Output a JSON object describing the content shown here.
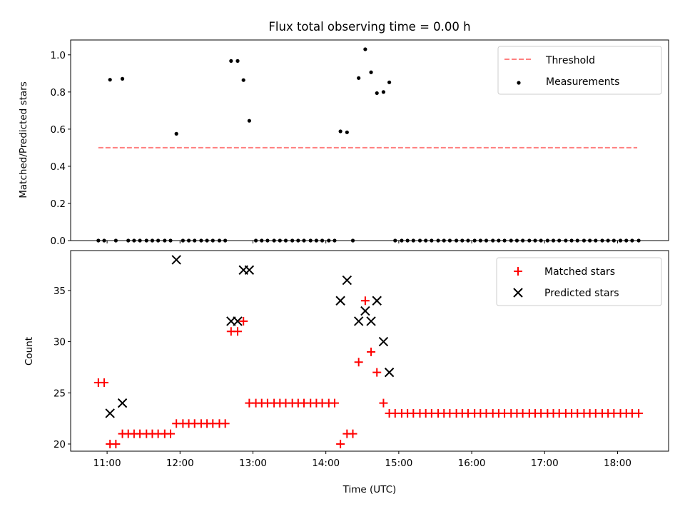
{
  "chart_data": [
    {
      "type": "scatter",
      "title": "Flux total observing time = 0.00 h",
      "xlabel": "",
      "ylabel": "Matched/Predicted stars",
      "ylim": [
        0,
        1.08
      ],
      "yticks": [
        0.0,
        0.2,
        0.4,
        0.6,
        0.8,
        1.0
      ],
      "ytick_labels": [
        "0.0",
        "0.2",
        "0.4",
        "0.6",
        "0.8",
        "1.0"
      ],
      "xlim": [
        10.5,
        18.7
      ],
      "x_unit": "hours UTC",
      "legend_position": "top-right",
      "threshold": {
        "name": "Threshold",
        "value": 0.5,
        "x_range": [
          10.88,
          18.27
        ],
        "color": "#ff7f7f"
      },
      "series": [
        {
          "name": "Measurements",
          "color": "#000000",
          "points": [
            [
              10.88,
              0
            ],
            [
              10.96,
              0
            ],
            [
              11.04,
              0.866
            ],
            [
              11.12,
              0
            ],
            [
              11.21,
              0.871
            ],
            [
              11.29,
              0
            ],
            [
              11.37,
              0
            ],
            [
              11.45,
              0
            ],
            [
              11.54,
              0
            ],
            [
              11.62,
              0
            ],
            [
              11.7,
              0
            ],
            [
              11.79,
              0
            ],
            [
              11.87,
              0
            ],
            [
              11.95,
              0.575
            ],
            [
              12.04,
              0
            ],
            [
              12.12,
              0
            ],
            [
              12.2,
              0
            ],
            [
              12.29,
              0
            ],
            [
              12.37,
              0
            ],
            [
              12.45,
              0
            ],
            [
              12.54,
              0
            ],
            [
              12.62,
              0
            ],
            [
              12.7,
              0.967
            ],
            [
              12.79,
              0.967
            ],
            [
              12.87,
              0.864
            ],
            [
              12.95,
              0.645
            ],
            [
              13.04,
              0
            ],
            [
              13.12,
              0
            ],
            [
              13.2,
              0
            ],
            [
              13.29,
              0
            ],
            [
              13.37,
              0
            ],
            [
              13.45,
              0
            ],
            [
              13.54,
              0
            ],
            [
              13.62,
              0
            ],
            [
              13.7,
              0
            ],
            [
              13.79,
              0
            ],
            [
              13.87,
              0
            ],
            [
              13.95,
              0
            ],
            [
              14.04,
              0
            ],
            [
              14.12,
              0
            ],
            [
              14.2,
              0.588
            ],
            [
              14.29,
              0.583
            ],
            [
              14.37,
              0
            ],
            [
              14.45,
              0.875
            ],
            [
              14.54,
              1.03
            ],
            [
              14.62,
              0.906
            ],
            [
              14.7,
              0.794
            ],
            [
              14.79,
              0.8
            ],
            [
              14.87,
              0.852
            ],
            [
              14.95,
              0
            ],
            [
              15.04,
              0
            ],
            [
              15.12,
              0
            ],
            [
              15.2,
              0
            ],
            [
              15.29,
              0
            ],
            [
              15.37,
              0
            ],
            [
              15.45,
              0
            ],
            [
              15.54,
              0
            ],
            [
              15.62,
              0
            ],
            [
              15.7,
              0
            ],
            [
              15.79,
              0
            ],
            [
              15.87,
              0
            ],
            [
              15.95,
              0
            ],
            [
              16.04,
              0
            ],
            [
              16.12,
              0
            ],
            [
              16.2,
              0
            ],
            [
              16.29,
              0
            ],
            [
              16.37,
              0
            ],
            [
              16.45,
              0
            ],
            [
              16.54,
              0
            ],
            [
              16.62,
              0
            ],
            [
              16.7,
              0
            ],
            [
              16.79,
              0
            ],
            [
              16.87,
              0
            ],
            [
              16.95,
              0
            ],
            [
              17.04,
              0
            ],
            [
              17.12,
              0
            ],
            [
              17.2,
              0
            ],
            [
              17.29,
              0
            ],
            [
              17.37,
              0
            ],
            [
              17.45,
              0
            ],
            [
              17.54,
              0
            ],
            [
              17.62,
              0
            ],
            [
              17.7,
              0
            ],
            [
              17.79,
              0
            ],
            [
              17.87,
              0
            ],
            [
              17.95,
              0
            ],
            [
              18.04,
              0
            ],
            [
              18.12,
              0
            ],
            [
              18.2,
              0
            ],
            [
              18.29,
              0
            ]
          ]
        }
      ]
    },
    {
      "type": "scatter",
      "title": "",
      "xlabel": "Time (UTC)",
      "ylabel": "Count",
      "ylim": [
        19.3,
        38.9
      ],
      "yticks": [
        20,
        25,
        30,
        35
      ],
      "ytick_labels": [
        "20",
        "25",
        "30",
        "35"
      ],
      "xlim": [
        10.5,
        18.7
      ],
      "xticks": [
        11,
        12,
        13,
        14,
        15,
        16,
        17,
        18
      ],
      "xtick_labels": [
        "11:00",
        "12:00",
        "13:00",
        "14:00",
        "15:00",
        "16:00",
        "17:00",
        "18:00"
      ],
      "legend_position": "top-right",
      "series": [
        {
          "name": "Matched stars",
          "marker": "plus",
          "color": "#ff0000",
          "points": [
            [
              10.88,
              26
            ],
            [
              10.96,
              26
            ],
            [
              11.04,
              20
            ],
            [
              11.12,
              20
            ],
            [
              11.21,
              21
            ],
            [
              11.29,
              21
            ],
            [
              11.37,
              21
            ],
            [
              11.45,
              21
            ],
            [
              11.54,
              21
            ],
            [
              11.62,
              21
            ],
            [
              11.7,
              21
            ],
            [
              11.79,
              21
            ],
            [
              11.87,
              21
            ],
            [
              11.95,
              22
            ],
            [
              12.04,
              22
            ],
            [
              12.12,
              22
            ],
            [
              12.2,
              22
            ],
            [
              12.29,
              22
            ],
            [
              12.37,
              22
            ],
            [
              12.45,
              22
            ],
            [
              12.54,
              22
            ],
            [
              12.62,
              22
            ],
            [
              12.7,
              31
            ],
            [
              12.79,
              31
            ],
            [
              12.87,
              32
            ],
            [
              12.95,
              24
            ],
            [
              13.04,
              24
            ],
            [
              13.12,
              24
            ],
            [
              13.2,
              24
            ],
            [
              13.29,
              24
            ],
            [
              13.37,
              24
            ],
            [
              13.45,
              24
            ],
            [
              13.54,
              24
            ],
            [
              13.62,
              24
            ],
            [
              13.7,
              24
            ],
            [
              13.79,
              24
            ],
            [
              13.87,
              24
            ],
            [
              13.95,
              24
            ],
            [
              14.04,
              24
            ],
            [
              14.12,
              24
            ],
            [
              14.2,
              20
            ],
            [
              14.29,
              21
            ],
            [
              14.37,
              21
            ],
            [
              14.45,
              28
            ],
            [
              14.54,
              34
            ],
            [
              14.62,
              29
            ],
            [
              14.7,
              27
            ],
            [
              14.79,
              24
            ],
            [
              14.87,
              23
            ],
            [
              14.95,
              23
            ],
            [
              15.04,
              23
            ],
            [
              15.12,
              23
            ],
            [
              15.2,
              23
            ],
            [
              15.29,
              23
            ],
            [
              15.37,
              23
            ],
            [
              15.45,
              23
            ],
            [
              15.54,
              23
            ],
            [
              15.62,
              23
            ],
            [
              15.7,
              23
            ],
            [
              15.79,
              23
            ],
            [
              15.87,
              23
            ],
            [
              15.95,
              23
            ],
            [
              16.04,
              23
            ],
            [
              16.12,
              23
            ],
            [
              16.2,
              23
            ],
            [
              16.29,
              23
            ],
            [
              16.37,
              23
            ],
            [
              16.45,
              23
            ],
            [
              16.54,
              23
            ],
            [
              16.62,
              23
            ],
            [
              16.7,
              23
            ],
            [
              16.79,
              23
            ],
            [
              16.87,
              23
            ],
            [
              16.95,
              23
            ],
            [
              17.04,
              23
            ],
            [
              17.12,
              23
            ],
            [
              17.2,
              23
            ],
            [
              17.29,
              23
            ],
            [
              17.37,
              23
            ],
            [
              17.45,
              23
            ],
            [
              17.54,
              23
            ],
            [
              17.62,
              23
            ],
            [
              17.7,
              23
            ],
            [
              17.79,
              23
            ],
            [
              17.87,
              23
            ],
            [
              17.95,
              23
            ],
            [
              18.04,
              23
            ],
            [
              18.12,
              23
            ],
            [
              18.2,
              23
            ],
            [
              18.29,
              23
            ]
          ]
        },
        {
          "name": "Predicted stars",
          "marker": "x",
          "color": "#000000",
          "points": [
            [
              11.04,
              23
            ],
            [
              11.21,
              24
            ],
            [
              11.95,
              38
            ],
            [
              12.7,
              32
            ],
            [
              12.79,
              32
            ],
            [
              12.87,
              37
            ],
            [
              12.95,
              37
            ],
            [
              14.2,
              34
            ],
            [
              14.29,
              36
            ],
            [
              14.45,
              32
            ],
            [
              14.54,
              33
            ],
            [
              14.62,
              32
            ],
            [
              14.7,
              34
            ],
            [
              14.79,
              30
            ],
            [
              14.87,
              27
            ]
          ]
        }
      ]
    }
  ]
}
